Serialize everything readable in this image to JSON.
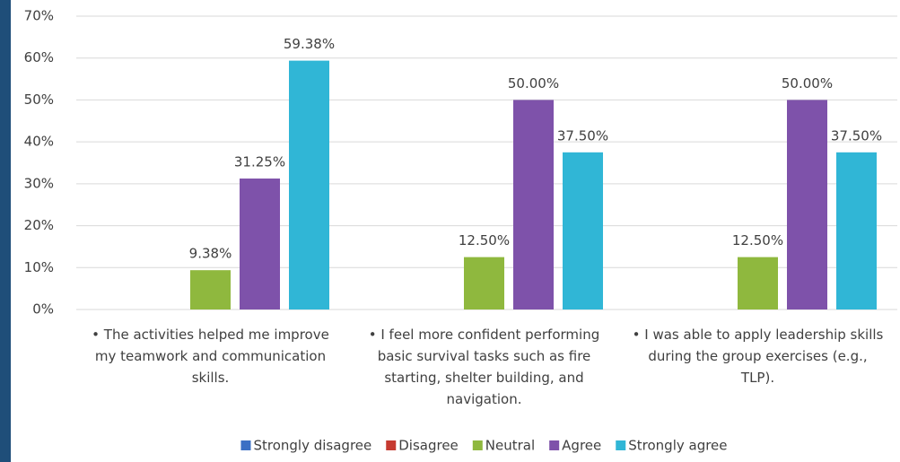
{
  "chart_data": {
    "type": "bar",
    "categories": [
      "• The activities helped me improve my teamwork and communication skills.",
      "• I feel more confident performing basic survival tasks such as fire starting, shelter building, and navigation.",
      "• I was able to apply leadership skills during the group exercises (e.g., TLP)."
    ],
    "series": [
      {
        "name": "Strongly disagree",
        "color": "#3b6fc4",
        "values": [
          0,
          0,
          0
        ]
      },
      {
        "name": "Disagree",
        "color": "#c63a30",
        "values": [
          0,
          0,
          0
        ]
      },
      {
        "name": "Neutral",
        "color": "#8fb83e",
        "values": [
          9.38,
          12.5,
          12.5
        ],
        "value_labels": [
          "9.38%",
          "12.50%",
          "12.50%"
        ]
      },
      {
        "name": "Agree",
        "color": "#7e52aa",
        "values": [
          31.25,
          50,
          50
        ],
        "value_labels": [
          "31.25%",
          "50.00%",
          "50.00%"
        ]
      },
      {
        "name": "Strongly agree",
        "color": "#30b6d6",
        "values": [
          59.38,
          37.5,
          37.5
        ],
        "value_labels": [
          "59.38%",
          "37.50%",
          "37.50%"
        ]
      }
    ],
    "ylim": [
      0,
      70
    ],
    "yticks": [
      {
        "value": 0,
        "label": "0%"
      },
      {
        "value": 10,
        "label": "10%"
      },
      {
        "value": 20,
        "label": "20%"
      },
      {
        "value": 30,
        "label": "30%"
      },
      {
        "value": 40,
        "label": "40%"
      },
      {
        "value": 50,
        "label": "50%"
      },
      {
        "value": 60,
        "label": "60%"
      },
      {
        "value": 70,
        "label": "70%"
      }
    ],
    "grid": true
  }
}
